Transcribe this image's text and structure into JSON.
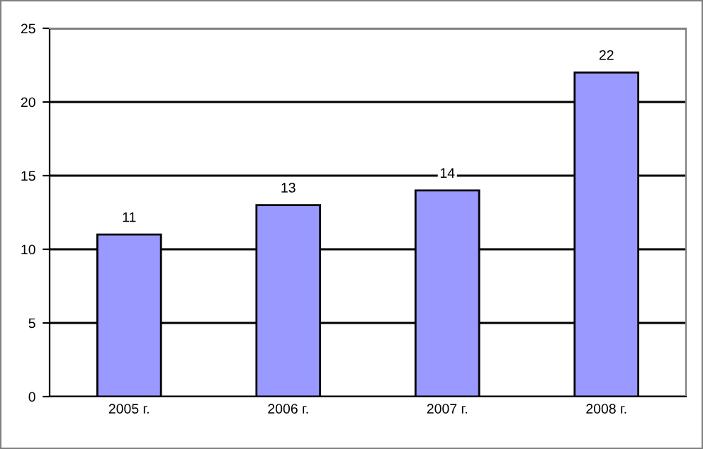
{
  "chart_data": {
    "type": "bar",
    "categories": [
      "2005 г.",
      "2006 г.",
      "2007 г.",
      "2008 г."
    ],
    "values": [
      11,
      13,
      14,
      22
    ],
    "color": "#9999ff",
    "ylim": [
      0,
      25
    ],
    "yticks": [
      0,
      5,
      10,
      15,
      20,
      25
    ],
    "grid": "y",
    "data_labels": true,
    "legend": false
  }
}
